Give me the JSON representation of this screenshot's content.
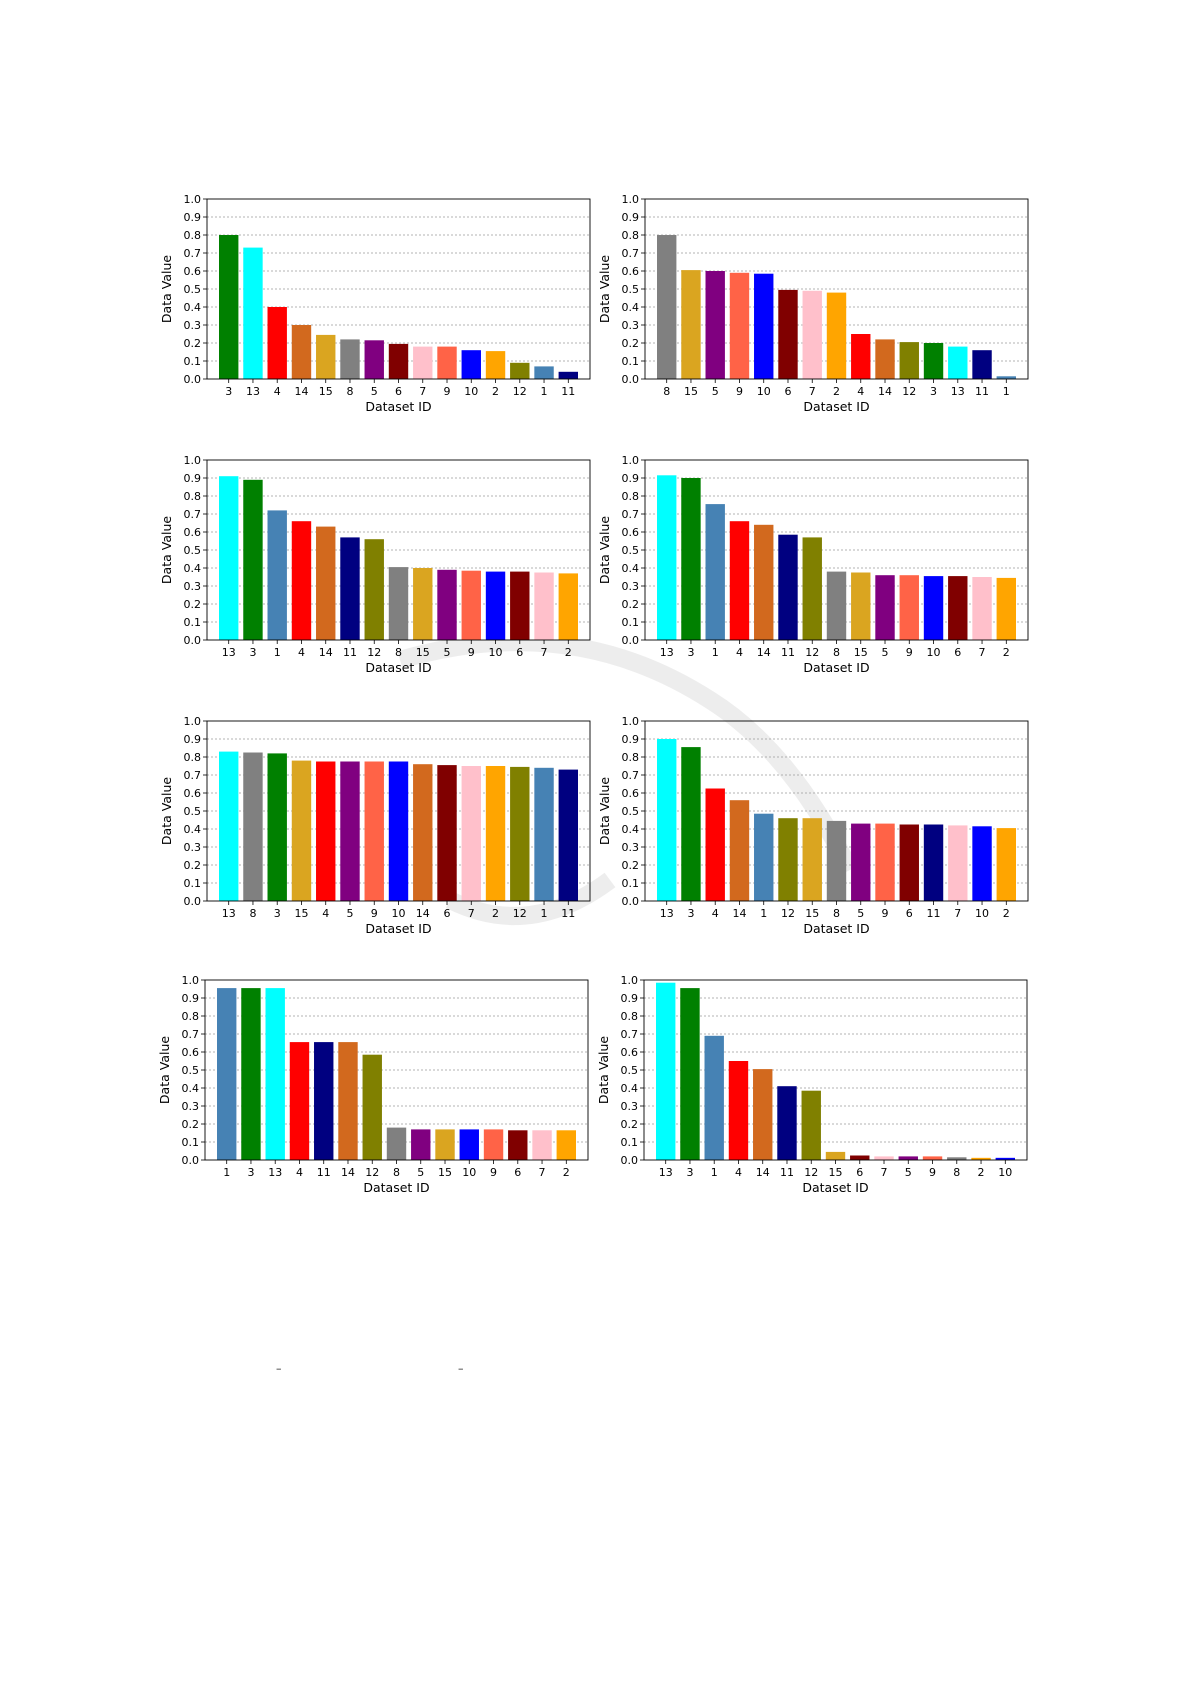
{
  "chart_data": [
    {
      "type": "bar",
      "categories": [
        "3",
        "13",
        "4",
        "14",
        "15",
        "8",
        "5",
        "6",
        "7",
        "9",
        "10",
        "2",
        "12",
        "1",
        "11"
      ],
      "values": [
        0.8,
        0.73,
        0.4,
        0.3,
        0.245,
        0.22,
        0.215,
        0.195,
        0.18,
        0.18,
        0.16,
        0.155,
        0.09,
        0.07,
        0.04
      ],
      "colors": [
        "#008000",
        "#00ffff",
        "#ff0000",
        "#d2691e",
        "#daa520",
        "#808080",
        "#800080",
        "#800000",
        "#ffc0cb",
        "#ff6347",
        "#0000ff",
        "#ffa500",
        "#808000",
        "#4682b4",
        "#000080"
      ],
      "xlabel": "Dataset ID",
      "ylabel": "Data Value",
      "ylim": [
        0,
        1.0
      ],
      "yticks": [
        "0.0",
        "0.1",
        "0.2",
        "0.3",
        "0.4",
        "0.5",
        "0.6",
        "0.7",
        "0.8",
        "0.9",
        "1.0"
      ],
      "grid": "y-dashed"
    },
    {
      "type": "bar",
      "categories": [
        "8",
        "15",
        "5",
        "9",
        "10",
        "6",
        "7",
        "2",
        "4",
        "14",
        "12",
        "3",
        "13",
        "11",
        "1"
      ],
      "values": [
        0.8,
        0.605,
        0.6,
        0.59,
        0.585,
        0.495,
        0.49,
        0.48,
        0.25,
        0.22,
        0.205,
        0.2,
        0.18,
        0.16,
        0.015
      ],
      "colors": [
        "#808080",
        "#daa520",
        "#800080",
        "#ff6347",
        "#0000ff",
        "#800000",
        "#ffc0cb",
        "#ffa500",
        "#ff0000",
        "#d2691e",
        "#808000",
        "#008000",
        "#00ffff",
        "#000080",
        "#4682b4"
      ],
      "xlabel": "Dataset ID",
      "ylabel": "Data Value",
      "ylim": [
        0,
        1.0
      ],
      "yticks": [
        "0.0",
        "0.1",
        "0.2",
        "0.3",
        "0.4",
        "0.5",
        "0.6",
        "0.7",
        "0.8",
        "0.9",
        "1.0"
      ],
      "grid": "y-dashed"
    },
    {
      "type": "bar",
      "categories": [
        "13",
        "3",
        "1",
        "4",
        "14",
        "11",
        "12",
        "8",
        "15",
        "5",
        "9",
        "10",
        "6",
        "7",
        "2"
      ],
      "values": [
        0.91,
        0.89,
        0.72,
        0.66,
        0.63,
        0.57,
        0.56,
        0.405,
        0.4,
        0.39,
        0.385,
        0.38,
        0.38,
        0.375,
        0.37
      ],
      "colors": [
        "#00ffff",
        "#008000",
        "#4682b4",
        "#ff0000",
        "#d2691e",
        "#000080",
        "#808000",
        "#808080",
        "#daa520",
        "#800080",
        "#ff6347",
        "#0000ff",
        "#800000",
        "#ffc0cb",
        "#ffa500"
      ],
      "xlabel": "Dataset ID",
      "ylabel": "Data Value",
      "ylim": [
        0,
        1.0
      ],
      "yticks": [
        "0.0",
        "0.1",
        "0.2",
        "0.3",
        "0.4",
        "0.5",
        "0.6",
        "0.7",
        "0.8",
        "0.9",
        "1.0"
      ],
      "grid": "y-dashed"
    },
    {
      "type": "bar",
      "categories": [
        "13",
        "3",
        "1",
        "4",
        "14",
        "11",
        "12",
        "8",
        "15",
        "5",
        "9",
        "10",
        "6",
        "7",
        "2"
      ],
      "values": [
        0.915,
        0.9,
        0.755,
        0.66,
        0.64,
        0.585,
        0.57,
        0.38,
        0.375,
        0.36,
        0.36,
        0.355,
        0.355,
        0.35,
        0.345
      ],
      "colors": [
        "#00ffff",
        "#008000",
        "#4682b4",
        "#ff0000",
        "#d2691e",
        "#000080",
        "#808000",
        "#808080",
        "#daa520",
        "#800080",
        "#ff6347",
        "#0000ff",
        "#800000",
        "#ffc0cb",
        "#ffa500"
      ],
      "xlabel": "Dataset ID",
      "ylabel": "Data Value",
      "ylim": [
        0,
        1.0
      ],
      "yticks": [
        "0.0",
        "0.1",
        "0.2",
        "0.3",
        "0.4",
        "0.5",
        "0.6",
        "0.7",
        "0.8",
        "0.9",
        "1.0"
      ],
      "grid": "y-dashed"
    },
    {
      "type": "bar",
      "categories": [
        "13",
        "8",
        "3",
        "15",
        "4",
        "5",
        "9",
        "10",
        "14",
        "6",
        "7",
        "2",
        "12",
        "1",
        "11"
      ],
      "values": [
        0.83,
        0.825,
        0.82,
        0.78,
        0.775,
        0.775,
        0.775,
        0.775,
        0.76,
        0.755,
        0.75,
        0.75,
        0.745,
        0.74,
        0.73
      ],
      "colors": [
        "#00ffff",
        "#808080",
        "#008000",
        "#daa520",
        "#ff0000",
        "#800080",
        "#ff6347",
        "#0000ff",
        "#d2691e",
        "#800000",
        "#ffc0cb",
        "#ffa500",
        "#808000",
        "#4682b4",
        "#000080"
      ],
      "xlabel": "Dataset ID",
      "ylabel": "Data Value",
      "ylim": [
        0,
        1.0
      ],
      "yticks": [
        "0.0",
        "0.1",
        "0.2",
        "0.3",
        "0.4",
        "0.5",
        "0.6",
        "0.7",
        "0.8",
        "0.9",
        "1.0"
      ],
      "grid": "y-dashed"
    },
    {
      "type": "bar",
      "categories": [
        "13",
        "3",
        "4",
        "14",
        "1",
        "12",
        "15",
        "8",
        "5",
        "9",
        "6",
        "11",
        "7",
        "10",
        "2"
      ],
      "values": [
        0.9,
        0.855,
        0.625,
        0.56,
        0.485,
        0.46,
        0.46,
        0.445,
        0.43,
        0.43,
        0.425,
        0.425,
        0.42,
        0.415,
        0.405
      ],
      "colors": [
        "#00ffff",
        "#008000",
        "#ff0000",
        "#d2691e",
        "#4682b4",
        "#808000",
        "#daa520",
        "#808080",
        "#800080",
        "#ff6347",
        "#800000",
        "#000080",
        "#ffc0cb",
        "#0000ff",
        "#ffa500"
      ],
      "xlabel": "Dataset ID",
      "ylabel": "Data Value",
      "ylim": [
        0,
        1.0
      ],
      "yticks": [
        "0.0",
        "0.1",
        "0.2",
        "0.3",
        "0.4",
        "0.5",
        "0.6",
        "0.7",
        "0.8",
        "0.9",
        "1.0"
      ],
      "grid": "y-dashed"
    },
    {
      "type": "bar",
      "categories": [
        "1",
        "3",
        "13",
        "4",
        "11",
        "14",
        "12",
        "8",
        "5",
        "15",
        "10",
        "9",
        "6",
        "7",
        "2"
      ],
      "values": [
        0.955,
        0.955,
        0.955,
        0.655,
        0.655,
        0.655,
        0.585,
        0.18,
        0.17,
        0.17,
        0.17,
        0.17,
        0.165,
        0.165,
        0.165
      ],
      "colors": [
        "#4682b4",
        "#008000",
        "#00ffff",
        "#ff0000",
        "#000080",
        "#d2691e",
        "#808000",
        "#808080",
        "#800080",
        "#daa520",
        "#0000ff",
        "#ff6347",
        "#800000",
        "#ffc0cb",
        "#ffa500"
      ],
      "xlabel": "Dataset ID",
      "ylabel": "Data Value",
      "ylim": [
        0,
        1.0
      ],
      "yticks": [
        "0.0",
        "0.1",
        "0.2",
        "0.3",
        "0.4",
        "0.5",
        "0.6",
        "0.7",
        "0.8",
        "0.9",
        "1.0"
      ],
      "grid": "y-dashed"
    },
    {
      "type": "bar",
      "categories": [
        "13",
        "3",
        "1",
        "4",
        "14",
        "11",
        "12",
        "15",
        "6",
        "7",
        "5",
        "9",
        "8",
        "2",
        "10"
      ],
      "values": [
        0.985,
        0.955,
        0.69,
        0.55,
        0.505,
        0.41,
        0.385,
        0.045,
        0.025,
        0.02,
        0.02,
        0.02,
        0.015,
        0.012,
        0.012
      ],
      "colors": [
        "#00ffff",
        "#008000",
        "#4682b4",
        "#ff0000",
        "#d2691e",
        "#000080",
        "#808000",
        "#daa520",
        "#800000",
        "#ffc0cb",
        "#800080",
        "#ff6347",
        "#808080",
        "#ffa500",
        "#0000ff"
      ],
      "xlabel": "Dataset ID",
      "ylabel": "Data Value",
      "ylim": [
        0,
        1.0
      ],
      "yticks": [
        "0.0",
        "0.1",
        "0.2",
        "0.3",
        "0.4",
        "0.5",
        "0.6",
        "0.7",
        "0.8",
        "0.9",
        "1.0"
      ],
      "grid": "y-dashed"
    }
  ],
  "stray_marks": [
    "–",
    "–"
  ],
  "watermark": {
    "color": "#d8d8d8"
  }
}
